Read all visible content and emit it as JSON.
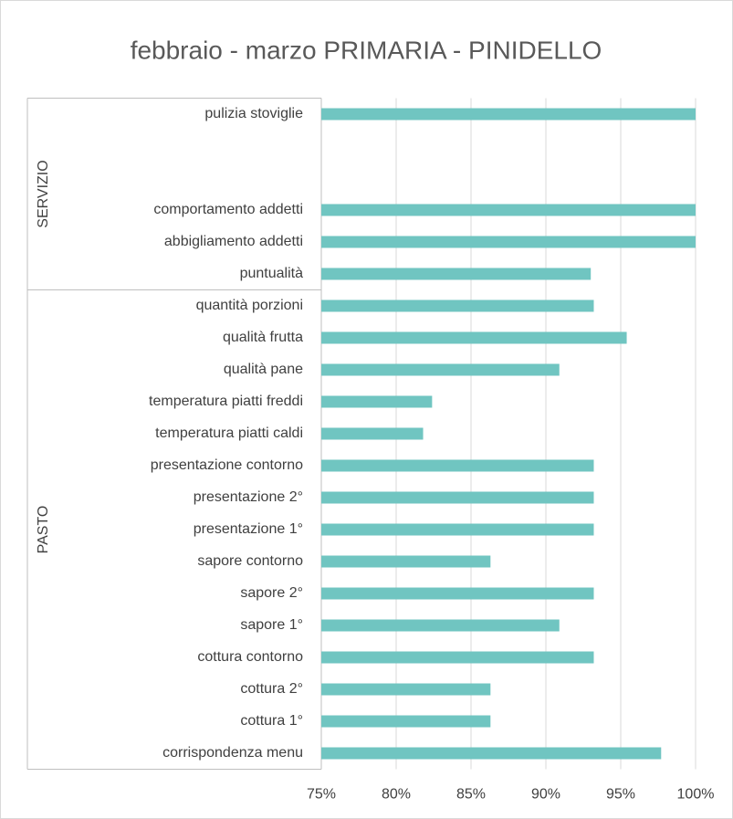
{
  "chart_data": {
    "type": "barh",
    "title": "febbraio - marzo PRIMARIA - PINIDELLO",
    "categories": [
      "pulizia stoviglie",
      null,
      null,
      "comportamento addetti",
      "abbigliamento addetti",
      "puntualità",
      "quantità porzioni",
      "qualità frutta",
      "qualità pane",
      "temperatura piatti freddi",
      "temperatura piatti caldi",
      "presentazione contorno",
      "presentazione 2°",
      "presentazione 1°",
      "sapore contorno",
      "sapore 2°",
      "sapore 1°",
      "cottura contorno",
      "cottura 2°",
      "cottura 1°",
      "corrispondenza menu"
    ],
    "values": [
      100,
      null,
      null,
      100,
      100,
      93,
      93.2,
      95.4,
      90.9,
      82.4,
      81.8,
      93.2,
      93.2,
      93.2,
      86.3,
      93.2,
      90.9,
      93.2,
      86.3,
      86.3,
      97.7
    ],
    "groups": [
      {
        "label": "SERVIZIO",
        "span": 6
      },
      {
        "label": "PASTO",
        "span": 15
      }
    ],
    "color": "#70c5c1",
    "xlim": [
      75,
      100
    ],
    "xticks": [
      {
        "value": 75,
        "label": "75%"
      },
      {
        "value": 80,
        "label": "80%"
      },
      {
        "value": 85,
        "label": "85%"
      },
      {
        "value": 90,
        "label": "90%"
      },
      {
        "value": 95,
        "label": "95%"
      },
      {
        "value": 100,
        "label": "100%"
      }
    ],
    "grid": true
  }
}
